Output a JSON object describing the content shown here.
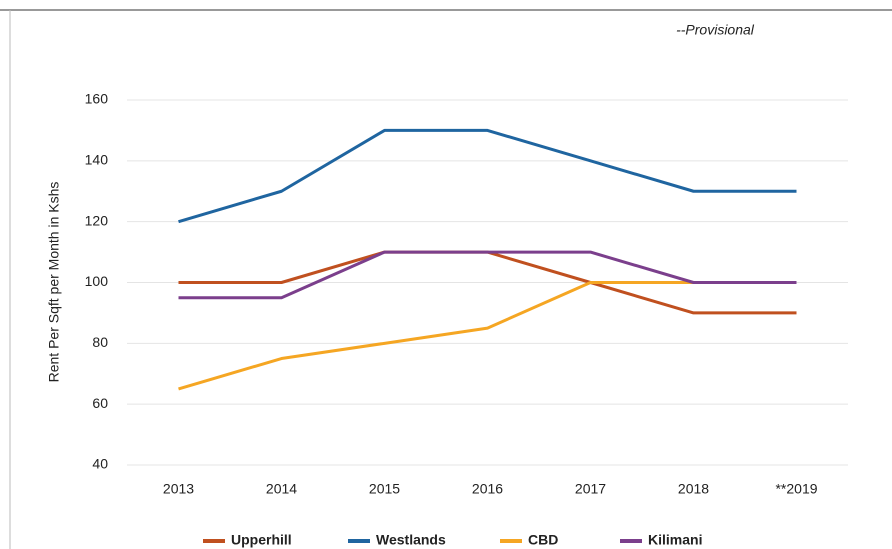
{
  "chart_data": {
    "type": "line",
    "annotation": "--Provisional",
    "ylabel": "Rent Per Sqft per Month in Kshs",
    "categories": [
      "2013",
      "2014",
      "2015",
      "2016",
      "2017",
      "2018",
      "**2019"
    ],
    "series": [
      {
        "name": "Upperhill",
        "color": "#c0501f",
        "values": [
          100,
          100,
          110,
          110,
          100,
          90,
          90
        ]
      },
      {
        "name": "Westlands",
        "color": "#1f65a0",
        "values": [
          120,
          130,
          150,
          150,
          140,
          130,
          130
        ]
      },
      {
        "name": "CBD",
        "color": "#f5a623",
        "values": [
          65,
          75,
          80,
          85,
          100,
          100,
          100
        ]
      },
      {
        "name": "Kilimani",
        "color": "#7b3f8c",
        "values": [
          95,
          95,
          110,
          110,
          110,
          100,
          100
        ]
      }
    ],
    "ylim": [
      40,
      160
    ],
    "yticks": [
      40,
      60,
      80,
      100,
      120,
      140,
      160
    ],
    "grid": true
  }
}
